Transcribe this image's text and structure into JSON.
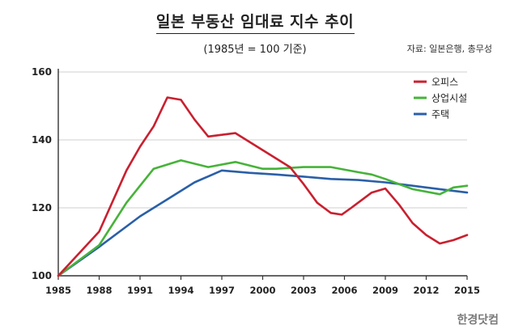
{
  "header": {
    "title": "일본 부동산 임대료 지수 추이",
    "subtitle": "(1985년 = 100 기준)",
    "source": "자료: 일본은행, 총무성"
  },
  "brand": "한경닷컴",
  "chart_data": {
    "type": "line",
    "title": "일본 부동산 임대료 지수 추이",
    "subtitle": "(1985년 = 100 기준)",
    "xlabel": "",
    "ylabel": "",
    "xlim": [
      1985,
      2015
    ],
    "ylim": [
      100,
      160
    ],
    "y_ticks": [
      100,
      120,
      140,
      160
    ],
    "x_ticks": [
      1985,
      1988,
      1991,
      1994,
      1997,
      2000,
      2003,
      2006,
      2009,
      2012,
      2015
    ],
    "grid": true,
    "legend_position": "top-right",
    "series": [
      {
        "name": "오피스",
        "color": "#c9202f",
        "x": [
          1985,
          1988,
          1990,
          1991,
          1992,
          1993,
          1994,
          1995,
          1996,
          1998,
          2000,
          2002,
          2003,
          2004,
          2005,
          2005.8,
          2006.5,
          2008,
          2009,
          2010,
          2011,
          2012,
          2013,
          2014,
          2015
        ],
        "y": [
          100,
          113,
          131,
          138,
          144,
          152.5,
          151.8,
          146,
          141,
          142,
          137,
          132,
          127,
          121.5,
          118.5,
          118,
          120,
          124.5,
          125.7,
          121,
          115.5,
          112,
          109.5,
          110.5,
          112
        ]
      },
      {
        "name": "상업시설",
        "color": "#46b339",
        "x": [
          1985,
          1988,
          1990,
          1992,
          1994,
          1996,
          1998,
          2000,
          2001,
          2003,
          2005,
          2007,
          2008,
          2009,
          2010,
          2011,
          2013,
          2014,
          2015
        ],
        "y": [
          100,
          109,
          121.5,
          131.5,
          134,
          132,
          133.5,
          131.5,
          131.5,
          132,
          132,
          130.5,
          129.8,
          128.5,
          127,
          125.5,
          124,
          126,
          126.5
        ]
      },
      {
        "name": "주택",
        "color": "#2a5fa8",
        "x": [
          1985,
          1988,
          1991,
          1993,
          1995,
          1997,
          1999,
          2001,
          2003,
          2005,
          2007,
          2009,
          2011,
          2013,
          2015
        ],
        "y": [
          100,
          108.5,
          117.5,
          122.5,
          127.5,
          131,
          130.3,
          129.8,
          129.2,
          128.5,
          128.2,
          127.5,
          126.5,
          125.5,
          124.5
        ]
      }
    ]
  }
}
